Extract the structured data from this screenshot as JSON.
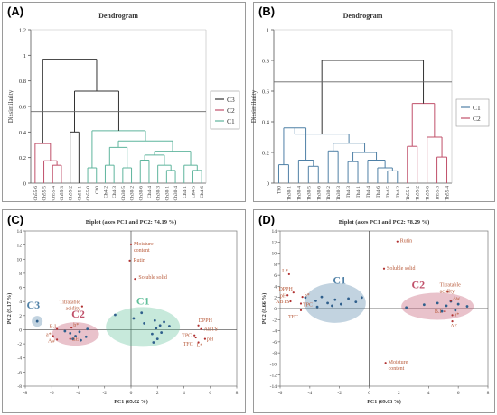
{
  "chart_data": [
    {
      "panel_label": "(A)",
      "type": "dendrogram",
      "title": "Dendrogram",
      "ylabel": "Dissimilarity",
      "ylim": [
        0,
        1.2
      ],
      "yticks": [
        "0",
        "0.2",
        "0.4",
        "0.6",
        "0.8",
        "1",
        "1.2"
      ],
      "cut_line": 0.56,
      "leaves": [
        "Ch55-6",
        "Ch55-5",
        "Ch55-4",
        "Ch55-3",
        "Ch55-2",
        "Ch55-1",
        "Ch55-0",
        "Ch0",
        "Ch4-2",
        "Ch4-3",
        "Ch30-5",
        "Ch30-2",
        "Ch30-6",
        "Ch4-4",
        "Ch30-3",
        "Ch30-1",
        "Ch30-4",
        "Ch4-1",
        "Ch4-5",
        "Ch4-6"
      ],
      "legend": [
        {
          "name": "C3",
          "color": "#333333"
        },
        {
          "name": "C2",
          "color": "#c0506a"
        },
        {
          "name": "C1",
          "color": "#5fb59d"
        }
      ]
    },
    {
      "panel_label": "(B)",
      "type": "dendrogram",
      "title": "Dendrogram",
      "ylabel": "Dissimilarity",
      "ylim": [
        0,
        1
      ],
      "yticks": [
        "0",
        "0.2",
        "0.4",
        "0.6",
        "0.8",
        "1"
      ],
      "cut_line": 0.66,
      "leaves": [
        "Th0",
        "Th30-1",
        "Th30-4",
        "Th30-5",
        "Th30-6",
        "Th30-2",
        "Th30-3",
        "Th4-3",
        "Th4-1",
        "Th4-4",
        "Th4-6",
        "Th4-5",
        "Th4-2",
        "Th55-1",
        "Th55-2",
        "Th55-6",
        "Th55-3",
        "Th55-4"
      ],
      "legend": [
        {
          "name": "C1",
          "color": "#4f80a6"
        },
        {
          "name": "C2",
          "color": "#c0506a"
        }
      ]
    },
    {
      "panel_label": "(C)",
      "type": "scatter",
      "title": "Biplot (axes PC1 and PC2: 74.19 %)",
      "xlabel": "PC1 (65.02 %)",
      "ylabel": "PC2 (9.17 %)",
      "xlim": [
        -8,
        8
      ],
      "ylim": [
        -8,
        14
      ],
      "xticks": [
        "-8",
        "-6",
        "-4",
        "-2",
        "0",
        "2",
        "4",
        "6",
        "8"
      ],
      "yticks": [
        "-8",
        "-6",
        "-4",
        "-2",
        "0",
        "2",
        "4",
        "6",
        "8",
        "10",
        "12",
        "14"
      ],
      "variables": [
        {
          "label": "Moisture content",
          "x": 0,
          "y": 12.1
        },
        {
          "label": "Rutin",
          "x": -0.1,
          "y": 9.8
        },
        {
          "label": "Soluble solid",
          "x": 0.3,
          "y": 7.2
        },
        {
          "label": "Titratable acidity",
          "x": -3.7,
          "y": 3.3
        },
        {
          "label": "DPPH",
          "x": 5.1,
          "y": 0.6
        },
        {
          "label": "ABTS",
          "x": 5.3,
          "y": 0.1
        },
        {
          "label": "TPC",
          "x": 4.8,
          "y": -0.8
        },
        {
          "label": "pH",
          "x": 5.6,
          "y": -1.3
        },
        {
          "label": "L*",
          "x": 5.1,
          "y": -1.8
        },
        {
          "label": "TFC",
          "x": 4.9,
          "y": -1.1
        },
        {
          "label": "b*",
          "x": -4.5,
          "y": 0.3
        },
        {
          "label": "B.I",
          "x": -5.6,
          "y": 0.1
        },
        {
          "label": "a*",
          "x": -5.9,
          "y": -0.9
        },
        {
          "label": "Aw",
          "x": -5.6,
          "y": -1.4
        },
        {
          "label": "ΔE",
          "x": -4.6,
          "y": -1.3
        }
      ],
      "clusters": [
        {
          "name": "C1",
          "color": "#5fbf99",
          "points": [
            [
              -1.2,
              2.1
            ],
            [
              0.2,
              1.6
            ],
            [
              0.8,
              2.4
            ],
            [
              1.0,
              0.9
            ],
            [
              1.8,
              1.3
            ],
            [
              2.2,
              0.6
            ],
            [
              2.5,
              1.1
            ],
            [
              2.9,
              0.5
            ],
            [
              1.9,
              0.2
            ],
            [
              2.3,
              -0.4
            ],
            [
              1.6,
              -0.6
            ],
            [
              2.0,
              -1.3
            ],
            [
              1.7,
              -1.8
            ]
          ]
        },
        {
          "name": "C2",
          "color": "#c0506a",
          "points": [
            [
              -5.0,
              -0.2
            ],
            [
              -4.6,
              -0.5
            ],
            [
              -4.2,
              -0.9
            ],
            [
              -3.9,
              -0.3
            ],
            [
              -3.4,
              -1.0
            ],
            [
              -3.3,
              0.1
            ],
            [
              -4.4,
              -1.3
            ],
            [
              -3.8,
              -1.5
            ]
          ]
        },
        {
          "name": "C3",
          "color": "#4f80a6",
          "points": [
            [
              -7.1,
              1.2
            ]
          ]
        }
      ]
    },
    {
      "panel_label": "(D)",
      "type": "scatter",
      "title": "Biplot (axes PC1 and PC2: 78.29 %)",
      "xlabel": "PC1 (69.63 %)",
      "ylabel": "PC2 (8.66 %)",
      "xlim": [
        -6,
        8
      ],
      "ylim": [
        -14,
        14
      ],
      "xticks": [
        "-6",
        "-4",
        "-2",
        "0",
        "2",
        "4",
        "6",
        "8"
      ],
      "yticks": [
        "-14",
        "-12",
        "-10",
        "-8",
        "-6",
        "-4",
        "-2",
        "0",
        "2",
        "4",
        "6",
        "8",
        "10",
        "12",
        "14"
      ],
      "variables": [
        {
          "label": "Rutin",
          "x": 1.9,
          "y": 12.1
        },
        {
          "label": "Soluble solid",
          "x": 1.0,
          "y": 7.2
        },
        {
          "label": "L*",
          "x": -5.4,
          "y": 6.2
        },
        {
          "label": "DPPH",
          "x": -5.1,
          "y": 2.9
        },
        {
          "label": "pH",
          "x": -5.5,
          "y": 2.4
        },
        {
          "label": "b*",
          "x": -4.5,
          "y": 2.1
        },
        {
          "label": "ABTS",
          "x": -5.3,
          "y": 1.3
        },
        {
          "label": "TPC",
          "x": -4.6,
          "y": 0.9
        },
        {
          "label": "TFC",
          "x": -4.6,
          "y": -0.3
        },
        {
          "label": "Titratable acidity",
          "x": 5.3,
          "y": 3.0
        },
        {
          "label": "Aw",
          "x": 5.5,
          "y": 1.4
        },
        {
          "label": "B.I",
          "x": 5.1,
          "y": -0.5
        },
        {
          "label": "a*",
          "x": 5.6,
          "y": -1.2
        },
        {
          "label": "ΔE",
          "x": 5.6,
          "y": -2.3
        },
        {
          "label": "Moisture content",
          "x": 1.1,
          "y": -9.8
        }
      ],
      "clusters": [
        {
          "name": "C1",
          "color": "#4f80a6",
          "points": [
            [
              -4.3,
              2.0
            ],
            [
              -3.6,
              1.4
            ],
            [
              -3.2,
              2.1
            ],
            [
              -2.8,
              1.0
            ],
            [
              -2.3,
              1.6
            ],
            [
              -1.9,
              0.8
            ],
            [
              -1.4,
              1.8
            ],
            [
              -0.9,
              1.2
            ],
            [
              -0.5,
              2.0
            ],
            [
              -2.5,
              0.5
            ],
            [
              -3.5,
              0.3
            ]
          ]
        },
        {
          "name": "C2",
          "color": "#c0506a",
          "points": [
            [
              2.5,
              0.2
            ],
            [
              3.7,
              0.7
            ],
            [
              4.6,
              1.0
            ],
            [
              5.2,
              0.5
            ],
            [
              5.5,
              1.3
            ],
            [
              6.0,
              0.8
            ],
            [
              6.6,
              0.4
            ],
            [
              5.8,
              -0.3
            ],
            [
              4.9,
              -0.5
            ]
          ]
        }
      ]
    }
  ]
}
